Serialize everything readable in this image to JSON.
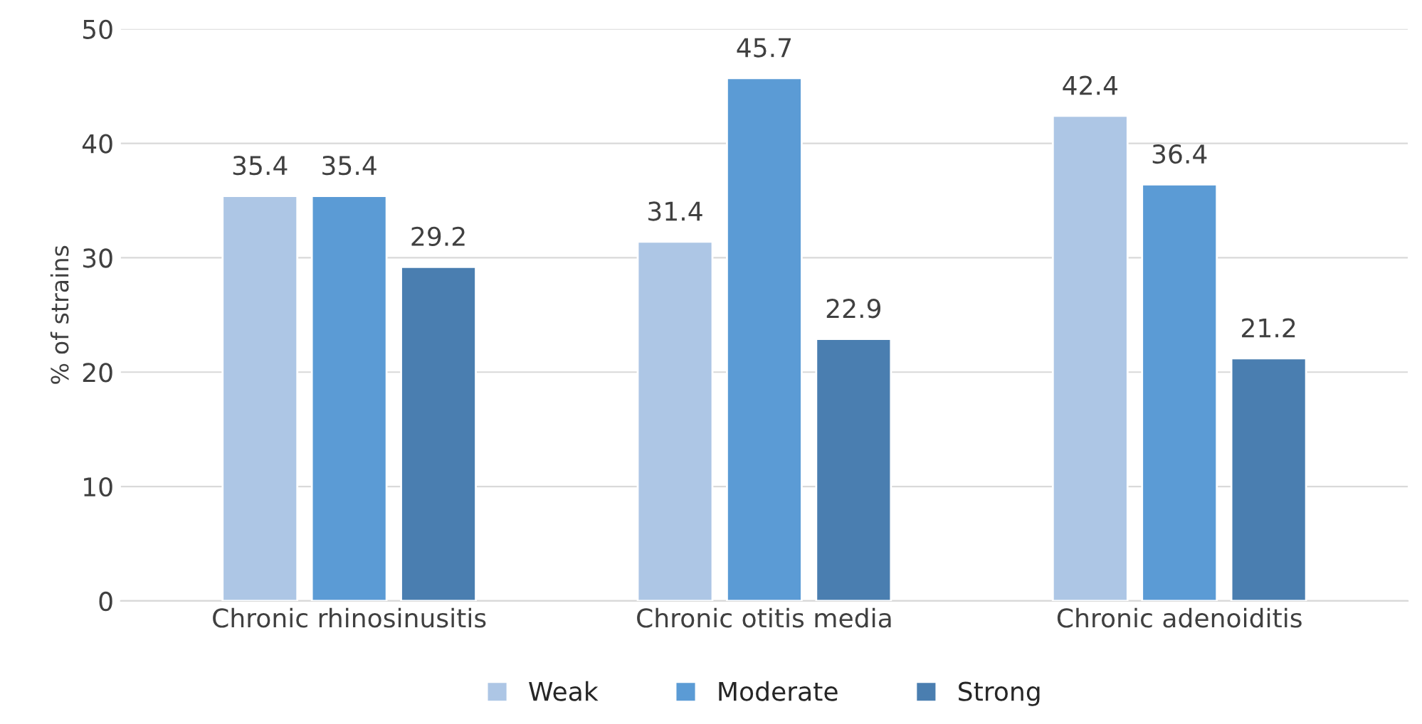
{
  "chart_data": {
    "type": "bar",
    "ylabel": "% of strains",
    "categories": [
      "Chronic rhinosinusitis",
      "Chronic otitis media",
      "Chronic adenoiditis"
    ],
    "series": [
      {
        "name": "Weak",
        "color": "#adc6e5",
        "values": [
          35.4,
          31.4,
          42.4
        ]
      },
      {
        "name": "Moderate",
        "color": "#5b9bd5",
        "values": [
          35.4,
          45.7,
          36.4
        ]
      },
      {
        "name": "Strong",
        "color": "#4a7eb0",
        "values": [
          29.2,
          22.9,
          21.2
        ]
      }
    ],
    "ylim": [
      0,
      50
    ],
    "yticks": [
      0,
      10,
      20,
      30,
      40,
      50
    ],
    "grid": "y",
    "legend": "bottom",
    "data_labels": true
  }
}
